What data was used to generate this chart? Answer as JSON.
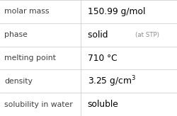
{
  "rows": [
    {
      "label": "molar mass",
      "value": "150.99 g/mol",
      "type": "plain"
    },
    {
      "label": "phase",
      "value": "solid",
      "type": "phase",
      "suffix": "(at STP)"
    },
    {
      "label": "melting point",
      "value": "710 °C",
      "type": "plain"
    },
    {
      "label": "density",
      "value": "3.25 g/cm",
      "type": "super",
      "super": "3"
    },
    {
      "label": "solubility in water",
      "value": "soluble",
      "type": "plain"
    }
  ],
  "col_split": 0.455,
  "bg_color": "#ffffff",
  "line_color": "#c8c8c8",
  "label_color": "#404040",
  "value_color": "#000000",
  "suffix_color": "#888888",
  "label_fontsize": 7.8,
  "value_fontsize": 8.8,
  "suffix_fontsize": 6.2,
  "super_fontsize": 6.5
}
